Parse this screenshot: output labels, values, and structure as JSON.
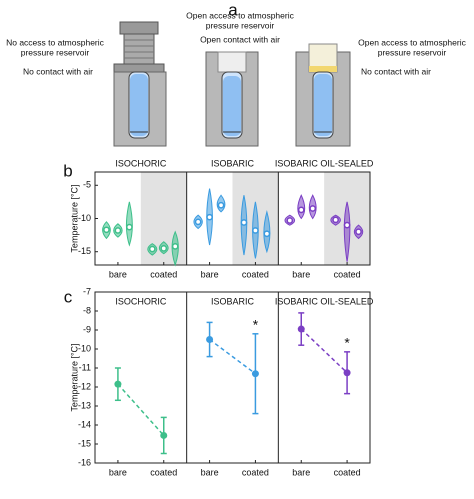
{
  "figure": {
    "panel_labels": [
      "a",
      "b",
      "c"
    ]
  },
  "diagram": {
    "annotations": [
      {
        "lines": [
          "No access to atmospheric",
          "pressure reservoir"
        ]
      },
      {
        "lines": [
          "No contact with air"
        ]
      },
      {
        "lines": [
          "Open access to atmospheric",
          "pressure reservoir"
        ]
      },
      {
        "lines": [
          "Open contact with air"
        ]
      },
      {
        "lines": [
          "Open access to atmospheric",
          "pressure reservoir"
        ]
      },
      {
        "lines": [
          "No contact with air"
        ]
      }
    ]
  },
  "chart_data": [
    {
      "type": "violin",
      "ylabel": "Temperature [°C]",
      "ylim": [
        -17,
        -3
      ],
      "yticks": [
        -15,
        -10,
        -5
      ],
      "groups": [
        "ISOCHORIC",
        "ISOBARIC",
        "ISOBARIC OIL-SEALED"
      ],
      "colors": [
        "#3dbf8a",
        "#3a9be0",
        "#7b3fc4"
      ],
      "categories": [
        "bare",
        "coated",
        "bare",
        "coated",
        "bare",
        "coated"
      ],
      "shaded": [
        false,
        true,
        false,
        true,
        false,
        true
      ],
      "samples": [
        {
          "medians": [
            -11.7,
            -11.8,
            -11.3
          ],
          "lows": [
            -13,
            -12.8,
            -14
          ],
          "highs": [
            -10.5,
            -10.8,
            -7.5
          ]
        },
        {
          "medians": [
            -14.6,
            -14.5,
            -14.2
          ],
          "lows": [
            -15.5,
            -15.3,
            -17
          ],
          "highs": [
            -13.8,
            -13.5,
            -12
          ]
        },
        {
          "medians": [
            -10.5,
            -9.8,
            -8
          ],
          "lows": [
            -11.5,
            -14,
            -9
          ],
          "highs": [
            -9.5,
            -5.5,
            -6.5
          ]
        },
        {
          "medians": [
            -10.6,
            -11.8,
            -12.3
          ],
          "lows": [
            -15.5,
            -16,
            -15
          ],
          "highs": [
            -6.5,
            -7.5,
            -9
          ]
        },
        {
          "medians": [
            -10.3,
            -8.7,
            -8.5
          ],
          "lows": [
            -11,
            -10,
            -10
          ],
          "highs": [
            -9.5,
            -6.5,
            -6.5
          ]
        },
        {
          "medians": [
            -10.2,
            -11,
            -12
          ],
          "lows": [
            -11,
            -16.5,
            -13
          ],
          "highs": [
            -9.5,
            -7.5,
            -11
          ]
        }
      ]
    },
    {
      "type": "errorbar",
      "ylabel": "Temperature [°C]",
      "ylim": [
        -16,
        -7
      ],
      "yticks": [
        -7,
        -8,
        -9,
        -10,
        -11,
        -12,
        -13,
        -14,
        -15,
        -16
      ],
      "groups": [
        "ISOCHORIC",
        "ISOBARIC",
        "ISOBARIC OIL-SEALED"
      ],
      "colors": [
        "#3dbf8a",
        "#3a9be0",
        "#7b3fc4"
      ],
      "categories": [
        "bare",
        "coated",
        "bare",
        "coated",
        "bare",
        "coated"
      ],
      "values": [
        -11.85,
        -14.55,
        -9.5,
        -11.3,
        -8.95,
        -11.25
      ],
      "errors": [
        0.85,
        0.95,
        0.9,
        2.1,
        0.85,
        1.1
      ],
      "significance": [
        null,
        null,
        null,
        "*",
        null,
        "*"
      ]
    }
  ]
}
